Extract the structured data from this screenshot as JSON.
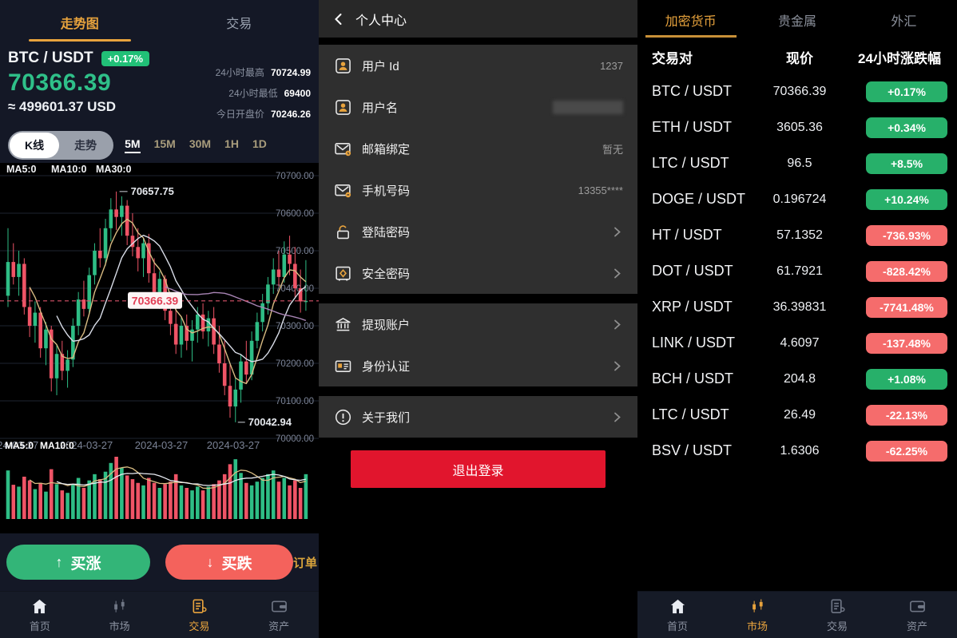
{
  "colors": {
    "accent_gold": "#e8a33d",
    "green": "#2ebd85",
    "red": "#ef5466",
    "badge_green": "#27b06a",
    "badge_red": "#f56c6c",
    "buy_up_green": "#33b578",
    "buy_down_red": "#f4625c",
    "logout_red": "#e1152d",
    "panel_navy": "#141826"
  },
  "left": {
    "tabs": [
      {
        "label": "走势图",
        "active": true
      },
      {
        "label": "交易",
        "active": false
      }
    ],
    "pair": "BTC / USDT",
    "badge": "+0.17%",
    "price": "70366.39",
    "usd": "≈ 499601.37 USD",
    "stats": [
      {
        "label": "24小时最高",
        "value": "70724.99"
      },
      {
        "label": "24小时最低",
        "value": "69400"
      },
      {
        "label": "今日开盘价",
        "value": "70246.26"
      }
    ],
    "chart_toggle": [
      {
        "label": "K线",
        "active": true
      },
      {
        "label": "走势",
        "active": false
      }
    ],
    "timeframes": [
      {
        "label": "5M",
        "active": true
      },
      {
        "label": "15M",
        "active": false
      },
      {
        "label": "30M",
        "active": false
      },
      {
        "label": "1H",
        "active": false
      },
      {
        "label": "1D",
        "active": false
      }
    ],
    "ma_labels_main": [
      "MA5:0",
      "MA10:0",
      "MA30:0"
    ],
    "ma_labels_vol": [
      "MA5:0",
      "MA10:0"
    ],
    "order_link": "订单",
    "buy_up": "买涨",
    "buy_down": "买跌",
    "arrow_up": "↑",
    "arrow_down": "↓",
    "nav": [
      {
        "label": "首页",
        "icon": "home",
        "active": false
      },
      {
        "label": "市场",
        "icon": "market",
        "active": false
      },
      {
        "label": "交易",
        "icon": "trade",
        "active": true
      },
      {
        "label": "资产",
        "icon": "assets",
        "active": false
      }
    ]
  },
  "chart_data": {
    "type": "candlestick",
    "symbol": "BTC/USDT",
    "interval": "5M",
    "y_axis_labels": [
      "70700.00",
      "70600.00",
      "70500.00",
      "70400.00",
      "70300.00",
      "70200.00",
      "70100.00",
      "70000.00"
    ],
    "y_max": 70700,
    "y_step": 100,
    "x_labels": [
      "2024-03-27",
      "2024-03-27",
      "2024-03-27",
      "2024-03-27"
    ],
    "annotations": {
      "high": "70657.75",
      "low": "70042.94",
      "last": "70366.39"
    },
    "high_value": 70657.75,
    "low_value": 70042.94,
    "last_value": 70366.39,
    "high_index": 20,
    "low_index": 42,
    "candles": [
      [
        70380,
        70560,
        70350,
        70470
      ],
      [
        70470,
        70520,
        70410,
        70430
      ],
      [
        70430,
        70500,
        70380,
        70465
      ],
      [
        70465,
        70480,
        70330,
        70350
      ],
      [
        70350,
        70400,
        70270,
        70300
      ],
      [
        70300,
        70365,
        70255,
        70335
      ],
      [
        70335,
        70350,
        70215,
        70240
      ],
      [
        70240,
        70310,
        70195,
        70290
      ],
      [
        70290,
        70300,
        70125,
        70160
      ],
      [
        70160,
        70250,
        70115,
        70225
      ],
      [
        70225,
        70260,
        70155,
        70180
      ],
      [
        70180,
        70235,
        70135,
        70210
      ],
      [
        70210,
        70320,
        70190,
        70300
      ],
      [
        70300,
        70390,
        70275,
        70370
      ],
      [
        70370,
        70420,
        70325,
        70345
      ],
      [
        70345,
        70455,
        70335,
        70435
      ],
      [
        70435,
        70520,
        70410,
        70500
      ],
      [
        70500,
        70560,
        70455,
        70480
      ],
      [
        70480,
        70585,
        70460,
        70560
      ],
      [
        70560,
        70640,
        70525,
        70610
      ],
      [
        70610,
        70657.75,
        70555,
        70590
      ],
      [
        70590,
        70645,
        70540,
        70620
      ],
      [
        70620,
        70635,
        70515,
        70540
      ],
      [
        70540,
        70600,
        70485,
        70510
      ],
      [
        70510,
        70560,
        70445,
        70480
      ],
      [
        70480,
        70535,
        70430,
        70520
      ],
      [
        70520,
        70545,
        70415,
        70440
      ],
      [
        70440,
        70480,
        70365,
        70390
      ],
      [
        70390,
        70445,
        70345,
        70425
      ],
      [
        70425,
        70435,
        70315,
        70340
      ],
      [
        70340,
        70390,
        70275,
        70305
      ],
      [
        70305,
        70350,
        70225,
        70250
      ],
      [
        70250,
        70325,
        70215,
        70300
      ],
      [
        70300,
        70330,
        70235,
        70260
      ],
      [
        70260,
        70315,
        70205,
        70290
      ],
      [
        70290,
        70350,
        70255,
        70330
      ],
      [
        70330,
        70360,
        70265,
        70285
      ],
      [
        70285,
        70340,
        70245,
        70320
      ],
      [
        70320,
        70350,
        70225,
        70250
      ],
      [
        70250,
        70300,
        70175,
        70200
      ],
      [
        70200,
        70260,
        70115,
        70140
      ],
      [
        70140,
        70200,
        70055,
        70085
      ],
      [
        70085,
        70160,
        70042.94,
        70130
      ],
      [
        70130,
        70225,
        70095,
        70205
      ],
      [
        70205,
        70260,
        70145,
        70170
      ],
      [
        70170,
        70285,
        70155,
        70260
      ],
      [
        70260,
        70335,
        70240,
        70310
      ],
      [
        70310,
        70385,
        70285,
        70360
      ],
      [
        70360,
        70430,
        70330,
        70410
      ],
      [
        70410,
        70480,
        70385,
        70450
      ],
      [
        70450,
        70500,
        70405,
        70430
      ],
      [
        70430,
        70525,
        70415,
        70490
      ],
      [
        70490,
        70540,
        70435,
        70465
      ],
      [
        70465,
        70510,
        70375,
        70400
      ],
      [
        70400,
        70450,
        70335,
        70365
      ],
      [
        70365,
        70475,
        70340,
        70366.39
      ]
    ],
    "volumes": [
      78,
      55,
      52,
      68,
      62,
      48,
      58,
      44,
      80,
      56,
      46,
      42,
      56,
      66,
      50,
      62,
      72,
      64,
      76,
      90,
      100,
      82,
      70,
      64,
      58,
      54,
      66,
      58,
      50,
      56,
      60,
      72,
      54,
      50,
      46,
      52,
      46,
      52,
      56,
      62,
      72,
      88,
      96,
      74,
      58,
      54,
      60,
      66,
      72,
      78,
      60,
      66,
      54,
      62,
      50,
      72
    ]
  },
  "center": {
    "title": "个人中心",
    "sections": [
      {
        "items": [
          {
            "icon": "user",
            "label": "用户 Id",
            "value": "1237"
          },
          {
            "icon": "user",
            "label": "用户名",
            "blurred": true
          },
          {
            "icon": "mail",
            "label": "邮箱绑定",
            "value": "暂无"
          },
          {
            "icon": "phone",
            "label": "手机号码",
            "value": "13355****"
          },
          {
            "icon": "lock",
            "label": "登陆密码",
            "chevron": true
          },
          {
            "icon": "safe",
            "label": "安全密码",
            "chevron": true
          }
        ]
      },
      {
        "items": [
          {
            "icon": "bank",
            "label": "提现账户",
            "chevron": true
          },
          {
            "icon": "idcard",
            "label": "身份认证",
            "chevron": true
          }
        ]
      },
      {
        "items": [
          {
            "icon": "about",
            "label": "关于我们",
            "chevron": true
          }
        ]
      }
    ],
    "logout": "退出登录"
  },
  "right": {
    "tabs": [
      {
        "label": "加密货币",
        "active": true
      },
      {
        "label": "贵金属",
        "active": false
      },
      {
        "label": "外汇",
        "active": false
      }
    ],
    "headers": [
      "交易对",
      "现价",
      "24小时涨跌幅"
    ],
    "rows": [
      {
        "pair": "BTC / USDT",
        "price": "70366.39",
        "change": "+0.17%",
        "dir": "up"
      },
      {
        "pair": "ETH / USDT",
        "price": "3605.36",
        "change": "+0.34%",
        "dir": "up"
      },
      {
        "pair": "LTC / USDT",
        "price": "96.5",
        "change": "+8.5%",
        "dir": "up"
      },
      {
        "pair": "DOGE / USDT",
        "price": "0.196724",
        "change": "+10.24%",
        "dir": "up"
      },
      {
        "pair": "HT / USDT",
        "price": "57.1352",
        "change": "-736.93%",
        "dir": "down"
      },
      {
        "pair": "DOT / USDT",
        "price": "61.7921",
        "change": "-828.42%",
        "dir": "down"
      },
      {
        "pair": "XRP / USDT",
        "price": "36.39831",
        "change": "-7741.48%",
        "dir": "down"
      },
      {
        "pair": "LINK / USDT",
        "price": "4.6097",
        "change": "-137.48%",
        "dir": "down"
      },
      {
        "pair": "BCH / USDT",
        "price": "204.8",
        "change": "+1.08%",
        "dir": "up"
      },
      {
        "pair": "LTC / USDT",
        "price": "26.49",
        "change": "-22.13%",
        "dir": "down"
      },
      {
        "pair": "BSV / USDT",
        "price": "1.6306",
        "change": "-62.25%",
        "dir": "down"
      }
    ],
    "nav": [
      {
        "label": "首页",
        "icon": "home",
        "active": false
      },
      {
        "label": "市场",
        "icon": "market",
        "active": true
      },
      {
        "label": "交易",
        "icon": "trade",
        "active": false
      },
      {
        "label": "资产",
        "icon": "assets",
        "active": false
      }
    ]
  }
}
